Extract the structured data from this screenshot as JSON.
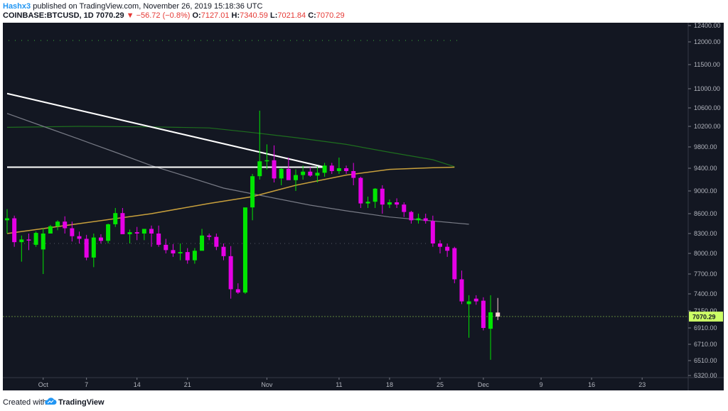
{
  "header": {
    "author": "Hashx3",
    "published": "published on TradingView.com, November 26, 2019 15:18:36 UTC",
    "symbol": "COINBASE:BTCUSD, 1D",
    "last": "7070.29",
    "change": "▼ −56.72 (−0.8%)",
    "o_label": "O:",
    "o_value": "7127.01",
    "h_label": "H:",
    "h_value": "7340.59",
    "l_label": "L:",
    "l_value": "7021.84",
    "c_label": "C:",
    "c_value": "7070.29"
  },
  "footer": {
    "created": "Created with",
    "brand": "TradingView"
  },
  "colors": {
    "background": "#131722",
    "up": "#00e600",
    "down": "#e600e6",
    "ma_gold": "#c8a03c",
    "ma_green": "#1e6e1e",
    "ma_gray": "#787b86",
    "trendline": "#ffffff",
    "price_tag": "#ccff66",
    "td_green": "#26a626",
    "td_red": "#e62020",
    "td_orange": "#ff9800"
  },
  "chart_data": {
    "type": "candlestick",
    "y_ticks": [
      "12400.00",
      "12000.00",
      "11500.00",
      "11000.00",
      "10600.00",
      "10200.00",
      "9800.00",
      "9400.00",
      "9000.00",
      "8600.00",
      "8300.00",
      "8000.00",
      "7700.00",
      "7400.00",
      "7150.00",
      "6910.00",
      "6710.00",
      "6510.00",
      "6320.00"
    ],
    "x_ticks": [
      {
        "label": "Oct",
        "day": 5
      },
      {
        "label": "7",
        "day": 11
      },
      {
        "label": "14",
        "day": 18
      },
      {
        "label": "21",
        "day": 25
      },
      {
        "label": "Nov",
        "day": 36
      },
      {
        "label": "11",
        "day": 46
      },
      {
        "label": "18",
        "day": 53
      },
      {
        "label": "25",
        "day": 60
      },
      {
        "label": "Dec",
        "day": 66
      },
      {
        "label": "9",
        "day": 74
      },
      {
        "label": "16",
        "day": 81
      },
      {
        "label": "23",
        "day": 88
      }
    ],
    "last_price_label": "7070.29",
    "last_price": 7070.29,
    "candles": [
      [
        8500,
        8680,
        8300,
        8530
      ],
      [
        8530,
        8570,
        8100,
        8170
      ],
      [
        8170,
        8270,
        7880,
        8210
      ],
      [
        8210,
        8300,
        8050,
        8200
      ],
      [
        8130,
        8330,
        8100,
        8310
      ],
      [
        8060,
        8380,
        7700,
        8300
      ],
      [
        8300,
        8430,
        8300,
        8410
      ],
      [
        8410,
        8500,
        8350,
        8480
      ],
      [
        8480,
        8560,
        8300,
        8380
      ],
      [
        8380,
        8480,
        8180,
        8260
      ],
      [
        8260,
        8330,
        8150,
        8220
      ],
      [
        8220,
        8280,
        7900,
        7940
      ],
      [
        7940,
        8300,
        7800,
        8240
      ],
      [
        8240,
        8290,
        8150,
        8190
      ],
      [
        8190,
        8450,
        8150,
        8440
      ],
      [
        8440,
        8700,
        8400,
        8610
      ],
      [
        8610,
        8700,
        8300,
        8290
      ],
      [
        8290,
        8360,
        8150,
        8320
      ],
      [
        8320,
        8400,
        8200,
        8300
      ],
      [
        8300,
        8360,
        8200,
        8370
      ],
      [
        8370,
        8420,
        8100,
        8300
      ],
      [
        8300,
        8420,
        8100,
        8130
      ],
      [
        8130,
        8220,
        8000,
        8050
      ],
      [
        8050,
        8140,
        7950,
        8000
      ],
      [
        8000,
        8150,
        7900,
        8020
      ],
      [
        8020,
        8080,
        7850,
        7900
      ],
      [
        7900,
        8080,
        7850,
        8040
      ],
      [
        8040,
        8370,
        8050,
        8270
      ],
      [
        8270,
        8300,
        8200,
        8250
      ],
      [
        8250,
        8300,
        8050,
        8100
      ],
      [
        8100,
        8150,
        7900,
        7960
      ],
      [
        7960,
        8110,
        7330,
        7470
      ],
      [
        7470,
        7560,
        7400,
        7420
      ],
      [
        7420,
        8700,
        7400,
        8710
      ],
      [
        8710,
        9300,
        8500,
        9260
      ],
      [
        9260,
        10540,
        9200,
        9530
      ],
      [
        9530,
        9850,
        9380,
        9550
      ],
      [
        9550,
        9830,
        9150,
        9220
      ],
      [
        9220,
        9400,
        9100,
        9390
      ],
      [
        9390,
        9600,
        9200,
        9190
      ],
      [
        9190,
        9380,
        9000,
        9280
      ],
      [
        9280,
        9450,
        9200,
        9340
      ],
      [
        9340,
        9420,
        9250,
        9270
      ],
      [
        9270,
        9430,
        9150,
        9320
      ],
      [
        9320,
        9500,
        9250,
        9450
      ],
      [
        9450,
        9500,
        9300,
        9350
      ],
      [
        9350,
        9600,
        9300,
        9400
      ],
      [
        9400,
        9450,
        9300,
        9350
      ],
      [
        9350,
        9500,
        9100,
        9230
      ],
      [
        9230,
        9250,
        8700,
        8780
      ],
      [
        8780,
        8900,
        8700,
        8810
      ],
      [
        8810,
        9050,
        8700,
        9040
      ],
      [
        9040,
        9100,
        8600,
        8760
      ],
      [
        8760,
        8850,
        8700,
        8800
      ],
      [
        8800,
        8870,
        8700,
        8760
      ],
      [
        8760,
        8800,
        8550,
        8630
      ],
      [
        8630,
        8650,
        8450,
        8500
      ],
      [
        8500,
        8600,
        8450,
        8530
      ],
      [
        8530,
        8600,
        8450,
        8490
      ],
      [
        8490,
        8570,
        8100,
        8150
      ],
      [
        8150,
        8200,
        8000,
        8100
      ],
      [
        8100,
        8150,
        7950,
        8040
      ],
      [
        8080,
        8100,
        7560,
        7620
      ],
      [
        7620,
        7750,
        7250,
        7290
      ],
      [
        7250,
        7380,
        6790,
        7290
      ],
      [
        7330,
        7380,
        7240,
        7290
      ],
      [
        7300,
        7350,
        6880,
        6910
      ],
      [
        6900,
        7380,
        6520,
        7130
      ],
      [
        7127,
        7340,
        7021,
        7070
      ]
    ],
    "trendline": [
      [
        0,
        10900
      ],
      [
        44,
        9420
      ]
    ],
    "support_line": {
      "from_day": 0,
      "to_day": 44,
      "price": 9420
    },
    "ma_gold": [
      [
        0,
        8300
      ],
      [
        10,
        8450
      ],
      [
        20,
        8600
      ],
      [
        28,
        8780
      ],
      [
        34,
        8900
      ],
      [
        40,
        9100
      ],
      [
        47,
        9280
      ],
      [
        53,
        9380
      ],
      [
        59,
        9410
      ],
      [
        62,
        9420
      ]
    ],
    "ma_green": [
      [
        0,
        10180
      ],
      [
        10,
        10200
      ],
      [
        20,
        10190
      ],
      [
        28,
        10170
      ],
      [
        34,
        10080
      ],
      [
        40,
        9980
      ],
      [
        47,
        9850
      ],
      [
        53,
        9700
      ],
      [
        59,
        9560
      ],
      [
        62,
        9430
      ]
    ],
    "ma_gray": [
      [
        0,
        10480
      ],
      [
        5,
        10200
      ],
      [
        10,
        9950
      ],
      [
        15,
        9700
      ],
      [
        20,
        9450
      ],
      [
        25,
        9250
      ],
      [
        30,
        9050
      ],
      [
        36,
        8900
      ],
      [
        42,
        8750
      ],
      [
        47,
        8650
      ],
      [
        53,
        8550
      ],
      [
        59,
        8490
      ],
      [
        64,
        8440
      ]
    ]
  }
}
